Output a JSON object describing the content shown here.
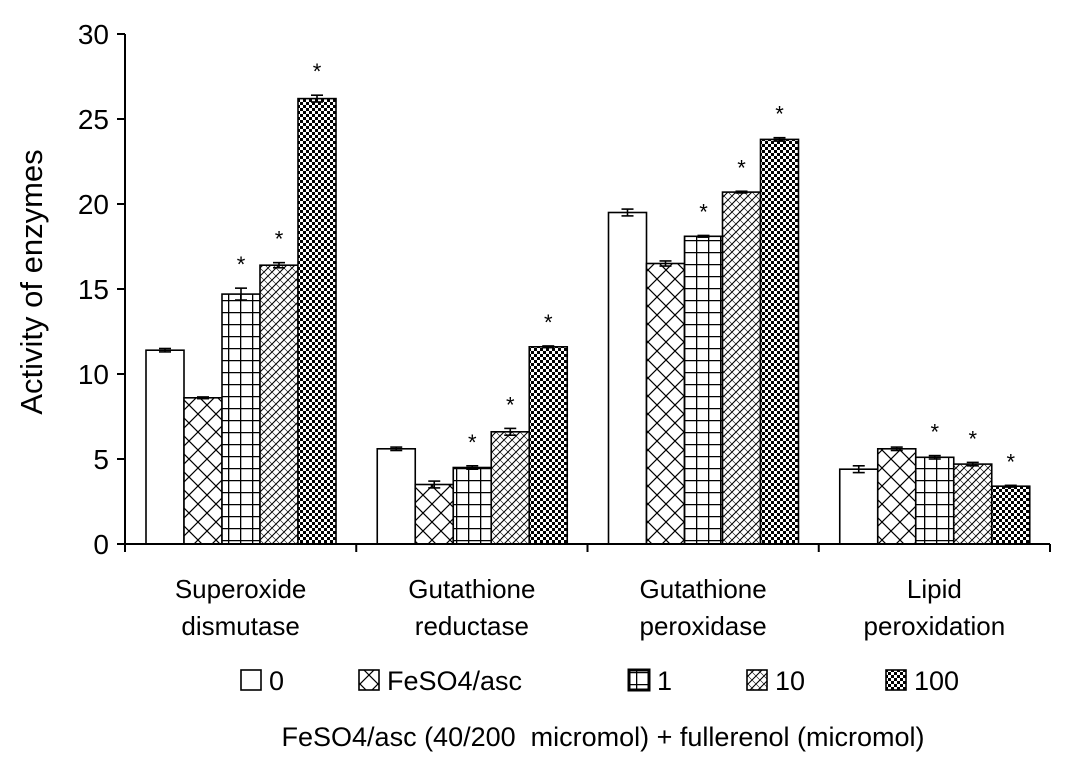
{
  "chart_data": {
    "type": "bar",
    "ylabel": "Activity of enzymes",
    "xlabel": "FeSO4/asc (40/200  micromol) + fullerenol (micromol)",
    "ylim": [
      0,
      30
    ],
    "yticks": [
      0,
      5,
      10,
      15,
      20,
      25,
      30
    ],
    "categories": [
      [
        "Superoxide",
        "dismutase"
      ],
      [
        "Gutathione",
        "reductase"
      ],
      [
        "Gutathione",
        "peroxidase"
      ],
      [
        "Lipid",
        "peroxidation"
      ]
    ],
    "series": [
      {
        "name": "0",
        "pattern": "plain",
        "values": [
          11.4,
          5.6,
          19.5,
          4.4
        ],
        "errors": [
          0.1,
          0.1,
          0.2,
          0.2
        ],
        "significant": [
          false,
          false,
          false,
          false
        ]
      },
      {
        "name": "FeSO4/asc",
        "pattern": "diagonal-cross",
        "values": [
          8.6,
          3.5,
          16.5,
          5.6
        ],
        "errors": [
          0.05,
          0.2,
          0.15,
          0.1
        ],
        "significant": [
          false,
          false,
          false,
          false
        ]
      },
      {
        "name": "1",
        "pattern": "grid",
        "values": [
          14.7,
          4.5,
          18.1,
          5.1
        ],
        "errors": [
          0.35,
          0.1,
          0.05,
          0.1
        ],
        "significant": [
          true,
          true,
          true,
          true
        ]
      },
      {
        "name": "10",
        "pattern": "dense-diagonal",
        "values": [
          16.4,
          6.6,
          20.7,
          4.7
        ],
        "errors": [
          0.15,
          0.2,
          0.05,
          0.1
        ],
        "significant": [
          true,
          true,
          true,
          true
        ]
      },
      {
        "name": "100",
        "pattern": "checker",
        "values": [
          26.2,
          11.6,
          23.8,
          3.4
        ],
        "errors": [
          0.2,
          0.05,
          0.1,
          0.05
        ],
        "significant": [
          true,
          true,
          true,
          true
        ]
      }
    ],
    "significance_marker": "*",
    "legend": {
      "position": "bottom",
      "entries": [
        "0",
        "FeSO4/asc",
        "1",
        "10",
        "100"
      ]
    },
    "grid": false
  }
}
